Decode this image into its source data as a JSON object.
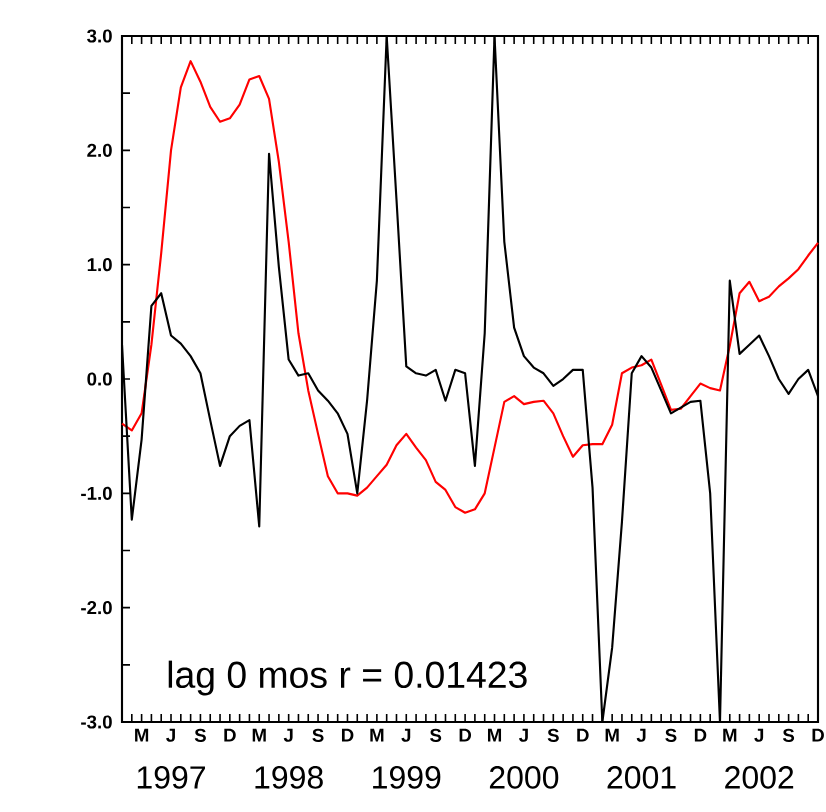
{
  "chart_data": {
    "type": "line",
    "categories": [
      null,
      null,
      "M",
      null,
      null,
      "J",
      null,
      null,
      "S",
      null,
      null,
      "D",
      null,
      null,
      "M",
      null,
      null,
      "J",
      null,
      null,
      "S",
      null,
      null,
      "D",
      null,
      null,
      "M",
      null,
      null,
      "J",
      null,
      null,
      "S",
      null,
      null,
      "D",
      null,
      null,
      "M",
      null,
      null,
      "J",
      null,
      null,
      "S",
      null,
      null,
      "D",
      null,
      null,
      "M",
      null,
      null,
      "J",
      null,
      null,
      "S",
      null,
      null,
      "D",
      null,
      null,
      "M",
      null,
      null,
      "J",
      null,
      null,
      "S",
      null,
      null,
      "D"
    ],
    "ylim": [
      -3,
      3
    ],
    "yticks": [
      {
        "value": -3,
        "label": "-3.0"
      },
      {
        "value": -2.5,
        "label": null
      },
      {
        "value": -2,
        "label": "-2.0"
      },
      {
        "value": -1.5,
        "label": null
      },
      {
        "value": -1,
        "label": "-1.0"
      },
      {
        "value": -0.5,
        "label": null
      },
      {
        "value": 0,
        "label": "0.0"
      },
      {
        "value": 0.5,
        "label": null
      },
      {
        "value": 1,
        "label": "1.0"
      },
      {
        "value": 1.5,
        "label": null
      },
      {
        "value": 2,
        "label": "2.0"
      },
      {
        "value": 2.5,
        "label": null
      },
      {
        "value": 3,
        "label": "3.0"
      }
    ],
    "annotations": [
      "lag 0 mos  r = 0.01423",
      "1997",
      "1998",
      "1999",
      "2000",
      "2001",
      "2002"
    ],
    "series": [
      {
        "color": "#ff0000",
        "values": [
          -0.39,
          -0.45,
          -0.3,
          0.3,
          1.1,
          2.0,
          2.55,
          2.78,
          2.6,
          2.38,
          2.25,
          2.28,
          2.4,
          2.62,
          2.65,
          2.45,
          1.9,
          1.2,
          0.4,
          -0.1,
          -0.48,
          -0.85,
          -1.0,
          -1.0,
          -1.02,
          -0.95,
          -0.85,
          -0.75,
          -0.58,
          -0.48,
          -0.6,
          -0.71,
          -0.9,
          -0.97,
          -1.12,
          -1.17,
          -1.14,
          -1.0,
          -0.6,
          -0.2,
          -0.15,
          -0.22,
          -0.2,
          -0.19,
          -0.3,
          -0.5,
          -0.68,
          -0.58,
          -0.57,
          -0.57,
          -0.4,
          0.05,
          0.1,
          0.12,
          0.17,
          -0.05,
          -0.27,
          -0.26,
          -0.15,
          -0.04,
          -0.08,
          -0.1,
          0.29,
          0.75,
          0.85,
          0.68,
          0.72,
          0.81,
          0.88,
          0.96,
          1.08,
          1.19
        ]
      },
      {
        "color": "#000000",
        "values": [
          0.3,
          -1.23,
          -0.53,
          0.64,
          0.75,
          0.38,
          0.31,
          0.2,
          0.05,
          -0.36,
          -0.76,
          -0.5,
          -0.41,
          -0.36,
          -1.29,
          1.97,
          0.98,
          0.17,
          0.03,
          0.05,
          -0.1,
          -0.19,
          -0.3,
          -0.48,
          -1.0,
          -0.19,
          0.86,
          3.0,
          1.57,
          0.11,
          0.05,
          0.03,
          0.08,
          -0.19,
          0.08,
          0.05,
          -0.76,
          0.4,
          3.0,
          1.2,
          0.45,
          0.2,
          0.1,
          0.05,
          -0.06,
          0.0,
          0.08,
          0.08,
          -0.95,
          -3.0,
          -2.35,
          -1.25,
          0.05,
          0.2,
          0.1,
          -0.1,
          -0.3,
          -0.25,
          -0.2,
          -0.19,
          -1.0,
          -3.0,
          0.86,
          0.22,
          0.3,
          0.38,
          0.2,
          0.0,
          -0.13,
          0.0,
          0.08,
          -0.15
        ]
      }
    ]
  }
}
